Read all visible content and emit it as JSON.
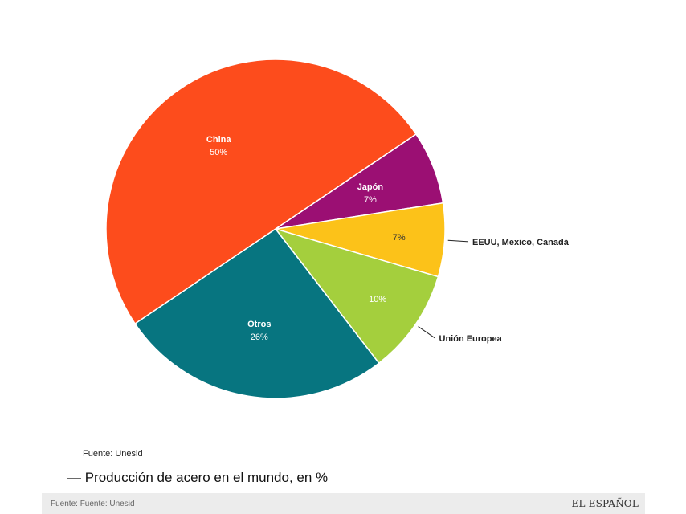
{
  "chart_data": {
    "type": "pie",
    "slices": [
      {
        "name": "Japón",
        "value": 7,
        "pct_label": "7%",
        "color": "#9b0f73",
        "label": "inside",
        "name_color": "#ffffff",
        "pct_color": "#ffffff"
      },
      {
        "name": "EEUU, Mexico, Canadá",
        "value": 7,
        "pct_label": "7%",
        "color": "#fcc219",
        "label": "outside",
        "pct_color": "#333333"
      },
      {
        "name": "Unión Europea",
        "value": 10,
        "pct_label": "10%",
        "color": "#a4cf3d",
        "label": "outside",
        "pct_color": "#ffffff"
      },
      {
        "name": "Otros",
        "value": 26,
        "pct_label": "26%",
        "color": "#077580",
        "label": "inside",
        "name_color": "#ffffff",
        "pct_color": "#ffffff"
      },
      {
        "name": "China",
        "value": 50,
        "pct_label": "50%",
        "color": "#fd4c1c",
        "label": "inside",
        "name_color": "#ffffff",
        "pct_color": "#ffffff"
      }
    ]
  },
  "source_text": "Fuente: Unesid",
  "caption": "— Producción de acero en el mundo, en %",
  "footer": {
    "source": "Fuente: Fuente: Unesid",
    "brand": "EL ESPAÑOL"
  }
}
